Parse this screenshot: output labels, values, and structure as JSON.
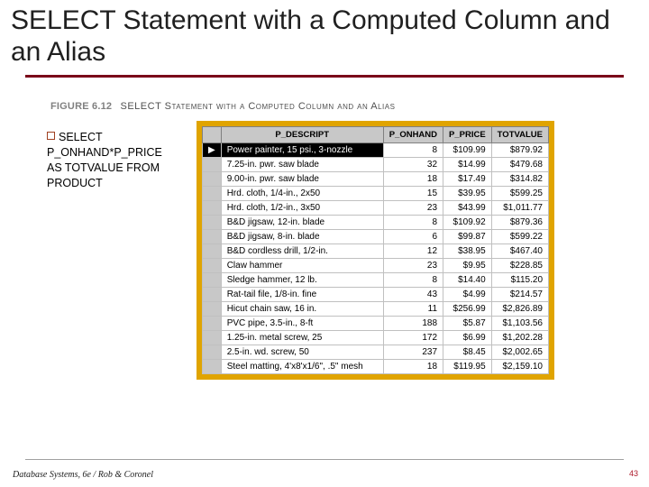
{
  "title": "SELECT Statement with a Computed Column and an Alias",
  "figure": {
    "number": "FIGURE 6.12",
    "caption": "SELECT Statement with a Computed Column and an Alias"
  },
  "sql": {
    "lines": [
      "SELECT",
      "P_ONHAND*P_PRICE",
      "AS TOTVALUE FROM",
      "PRODUCT"
    ]
  },
  "table": {
    "frame_color": "#e0a400",
    "header_bg": "#c8c8c8",
    "row_bg": "#ffffff",
    "border_color": "#808080",
    "columns": [
      "P_DESCRIPT",
      "P_ONHAND",
      "P_PRICE",
      "TOTVALUE"
    ],
    "rows": [
      {
        "desc": "Power painter, 15 psi., 3-nozzle",
        "onhand": 8,
        "price": "$109.99",
        "tot": "$879.92",
        "active": true
      },
      {
        "desc": "7.25-in. pwr. saw blade",
        "onhand": 32,
        "price": "$14.99",
        "tot": "$479.68"
      },
      {
        "desc": "9.00-in. pwr. saw blade",
        "onhand": 18,
        "price": "$17.49",
        "tot": "$314.82"
      },
      {
        "desc": "Hrd. cloth, 1/4-in., 2x50",
        "onhand": 15,
        "price": "$39.95",
        "tot": "$599.25"
      },
      {
        "desc": "Hrd. cloth, 1/2-in., 3x50",
        "onhand": 23,
        "price": "$43.99",
        "tot": "$1,011.77"
      },
      {
        "desc": "B&D jigsaw, 12-in. blade",
        "onhand": 8,
        "price": "$109.92",
        "tot": "$879.36"
      },
      {
        "desc": "B&D jigsaw, 8-in. blade",
        "onhand": 6,
        "price": "$99.87",
        "tot": "$599.22"
      },
      {
        "desc": "B&D cordless drill, 1/2-in.",
        "onhand": 12,
        "price": "$38.95",
        "tot": "$467.40"
      },
      {
        "desc": "Claw hammer",
        "onhand": 23,
        "price": "$9.95",
        "tot": "$228.85"
      },
      {
        "desc": "Sledge hammer, 12 lb.",
        "onhand": 8,
        "price": "$14.40",
        "tot": "$115.20"
      },
      {
        "desc": "Rat-tail file, 1/8-in. fine",
        "onhand": 43,
        "price": "$4.99",
        "tot": "$214.57"
      },
      {
        "desc": "Hicut chain saw, 16 in.",
        "onhand": 11,
        "price": "$256.99",
        "tot": "$2,826.89"
      },
      {
        "desc": "PVC pipe, 3.5-in., 8-ft",
        "onhand": 188,
        "price": "$5.87",
        "tot": "$1,103.56"
      },
      {
        "desc": "1.25-in. metal screw, 25",
        "onhand": 172,
        "price": "$6.99",
        "tot": "$1,202.28"
      },
      {
        "desc": "2.5-in. wd. screw, 50",
        "onhand": 237,
        "price": "$8.45",
        "tot": "$2,002.65"
      },
      {
        "desc": "Steel matting, 4'x8'x1/6\", .5\" mesh",
        "onhand": 18,
        "price": "$119.95",
        "tot": "$2,159.10"
      }
    ]
  },
  "footer": {
    "left": "Database Systems, 6e / Rob & Coronel",
    "page": "43"
  },
  "colors": {
    "title_rule": "#7a0019",
    "page_number": "#ad1a2b"
  }
}
